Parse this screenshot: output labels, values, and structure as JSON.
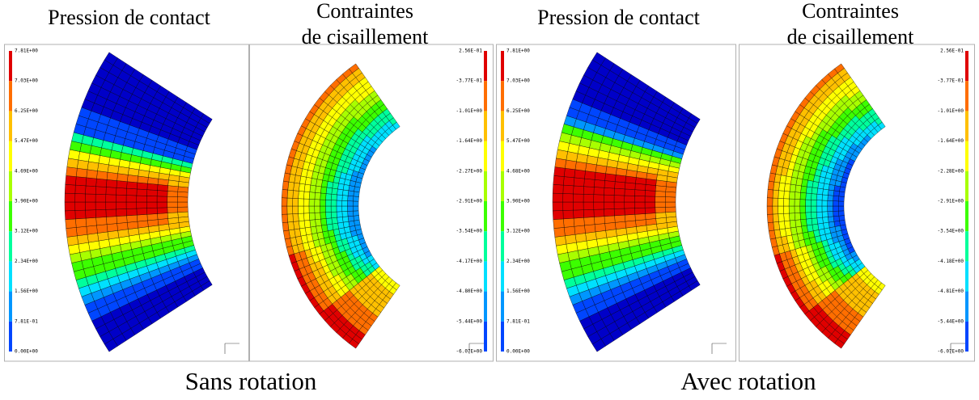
{
  "panels": [
    {
      "kind": "pressure",
      "title_lines": [
        "Pression de contact"
      ],
      "scale": [
        "7.81E+00",
        "7.03E+00",
        "6.25E+00",
        "5.47E+00",
        "4.69E+00",
        "3.90E+00",
        "3.12E+00",
        "2.34E+00",
        "1.56E+00",
        "7.81E-01",
        "0.00E+00"
      ]
    },
    {
      "kind": "shear",
      "title_lines": [
        "Contraintes",
        "de cisaillement"
      ],
      "scale": [
        "2.56E-01",
        "-3.77E-01",
        "-1.01E+00",
        "-1.64E+00",
        "-2.27E+00",
        "-2.91E+00",
        "-3.54E+00",
        "-4.17E+00",
        "-4.80E+00",
        "-5.44E+00",
        "-6.07E+00"
      ]
    },
    {
      "kind": "pressure",
      "title_lines": [
        "Pression de contact"
      ],
      "scale": [
        "7.81E+00",
        "7.03E+00",
        "6.25E+00",
        "5.47E+00",
        "4.68E+00",
        "3.90E+00",
        "3.12E+00",
        "2.34E+00",
        "1.56E+00",
        "7.81E-01",
        "0.00E+00"
      ]
    },
    {
      "kind": "shear",
      "title_lines": [
        "Contraintes",
        "de cisaillement"
      ],
      "scale": [
        "2.56E-01",
        "-3.77E-01",
        "-1.01E+00",
        "-1.64E+00",
        "-2.28E+00",
        "-2.91E+00",
        "-3.54E+00",
        "-4.18E+00",
        "-4.81E+00",
        "-5.44E+00",
        "-6.07E+00"
      ]
    }
  ],
  "captions": [
    "Sans rotation",
    "Avec rotation"
  ]
}
